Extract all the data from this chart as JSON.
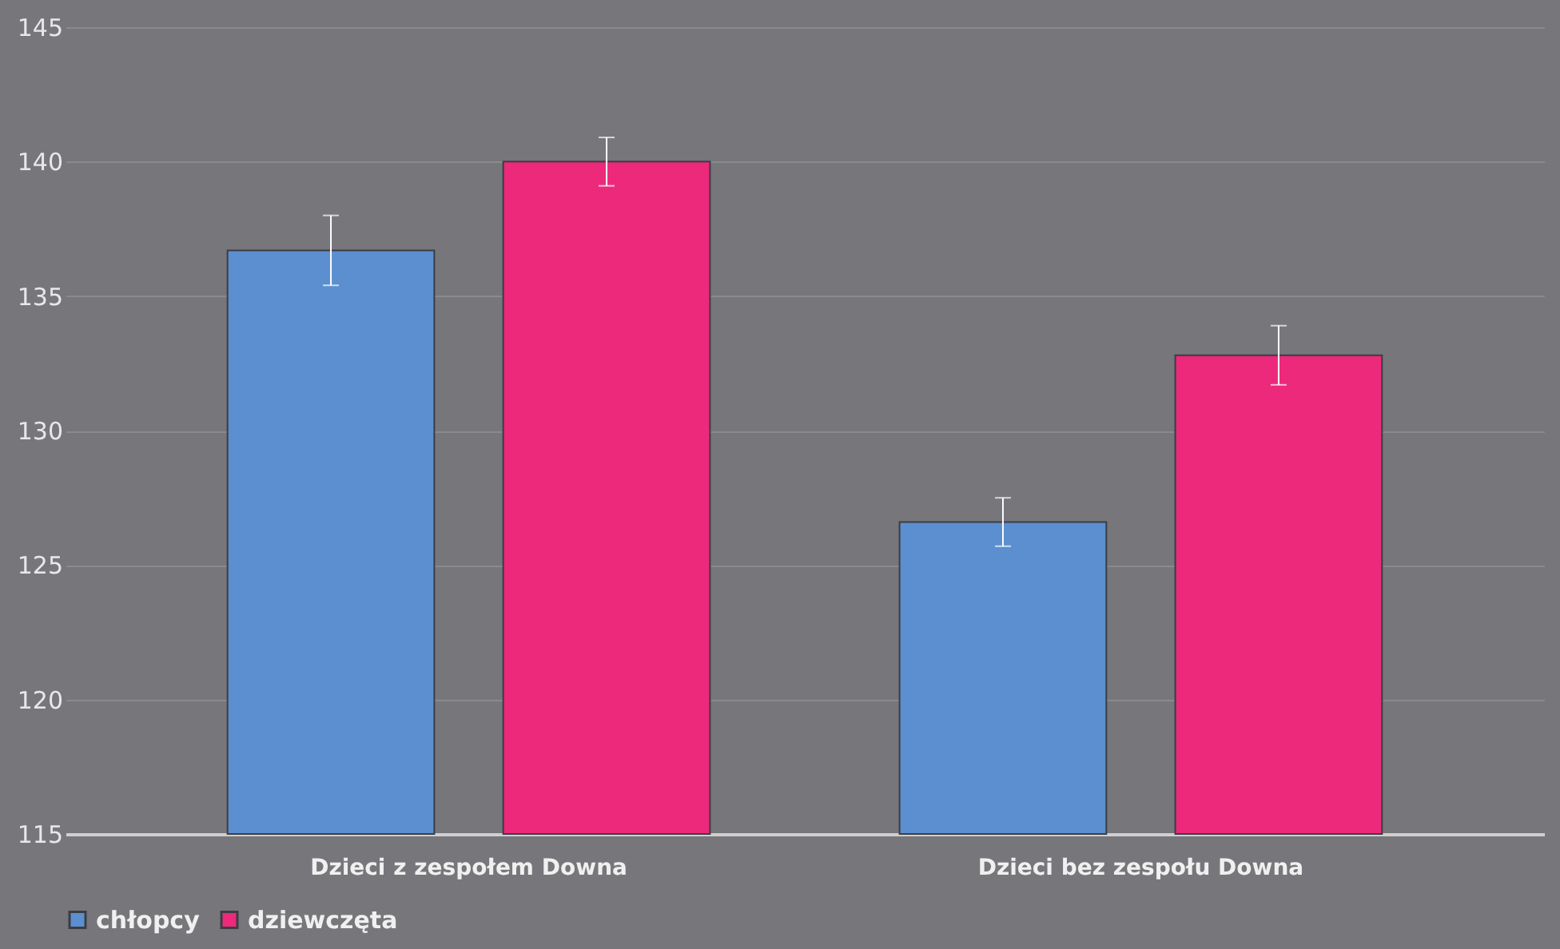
{
  "chart_data": {
    "type": "bar",
    "categories": [
      "Dzieci z zespołem Downa",
      "Dzieci bez zespołu Downa"
    ],
    "series": [
      {
        "name": "chłopcy",
        "color": "#5b8fcf",
        "values": [
          136.7,
          126.6
        ],
        "errors": [
          1.3,
          0.9
        ]
      },
      {
        "name": "dziewczęta",
        "color": "#ec297b",
        "values": [
          140.0,
          132.8
        ],
        "errors": [
          0.9,
          1.1
        ]
      }
    ],
    "ylim": [
      115,
      145
    ],
    "yticks": [
      115,
      120,
      125,
      130,
      135,
      140,
      145
    ],
    "grid": "y",
    "legend": "bottom"
  }
}
